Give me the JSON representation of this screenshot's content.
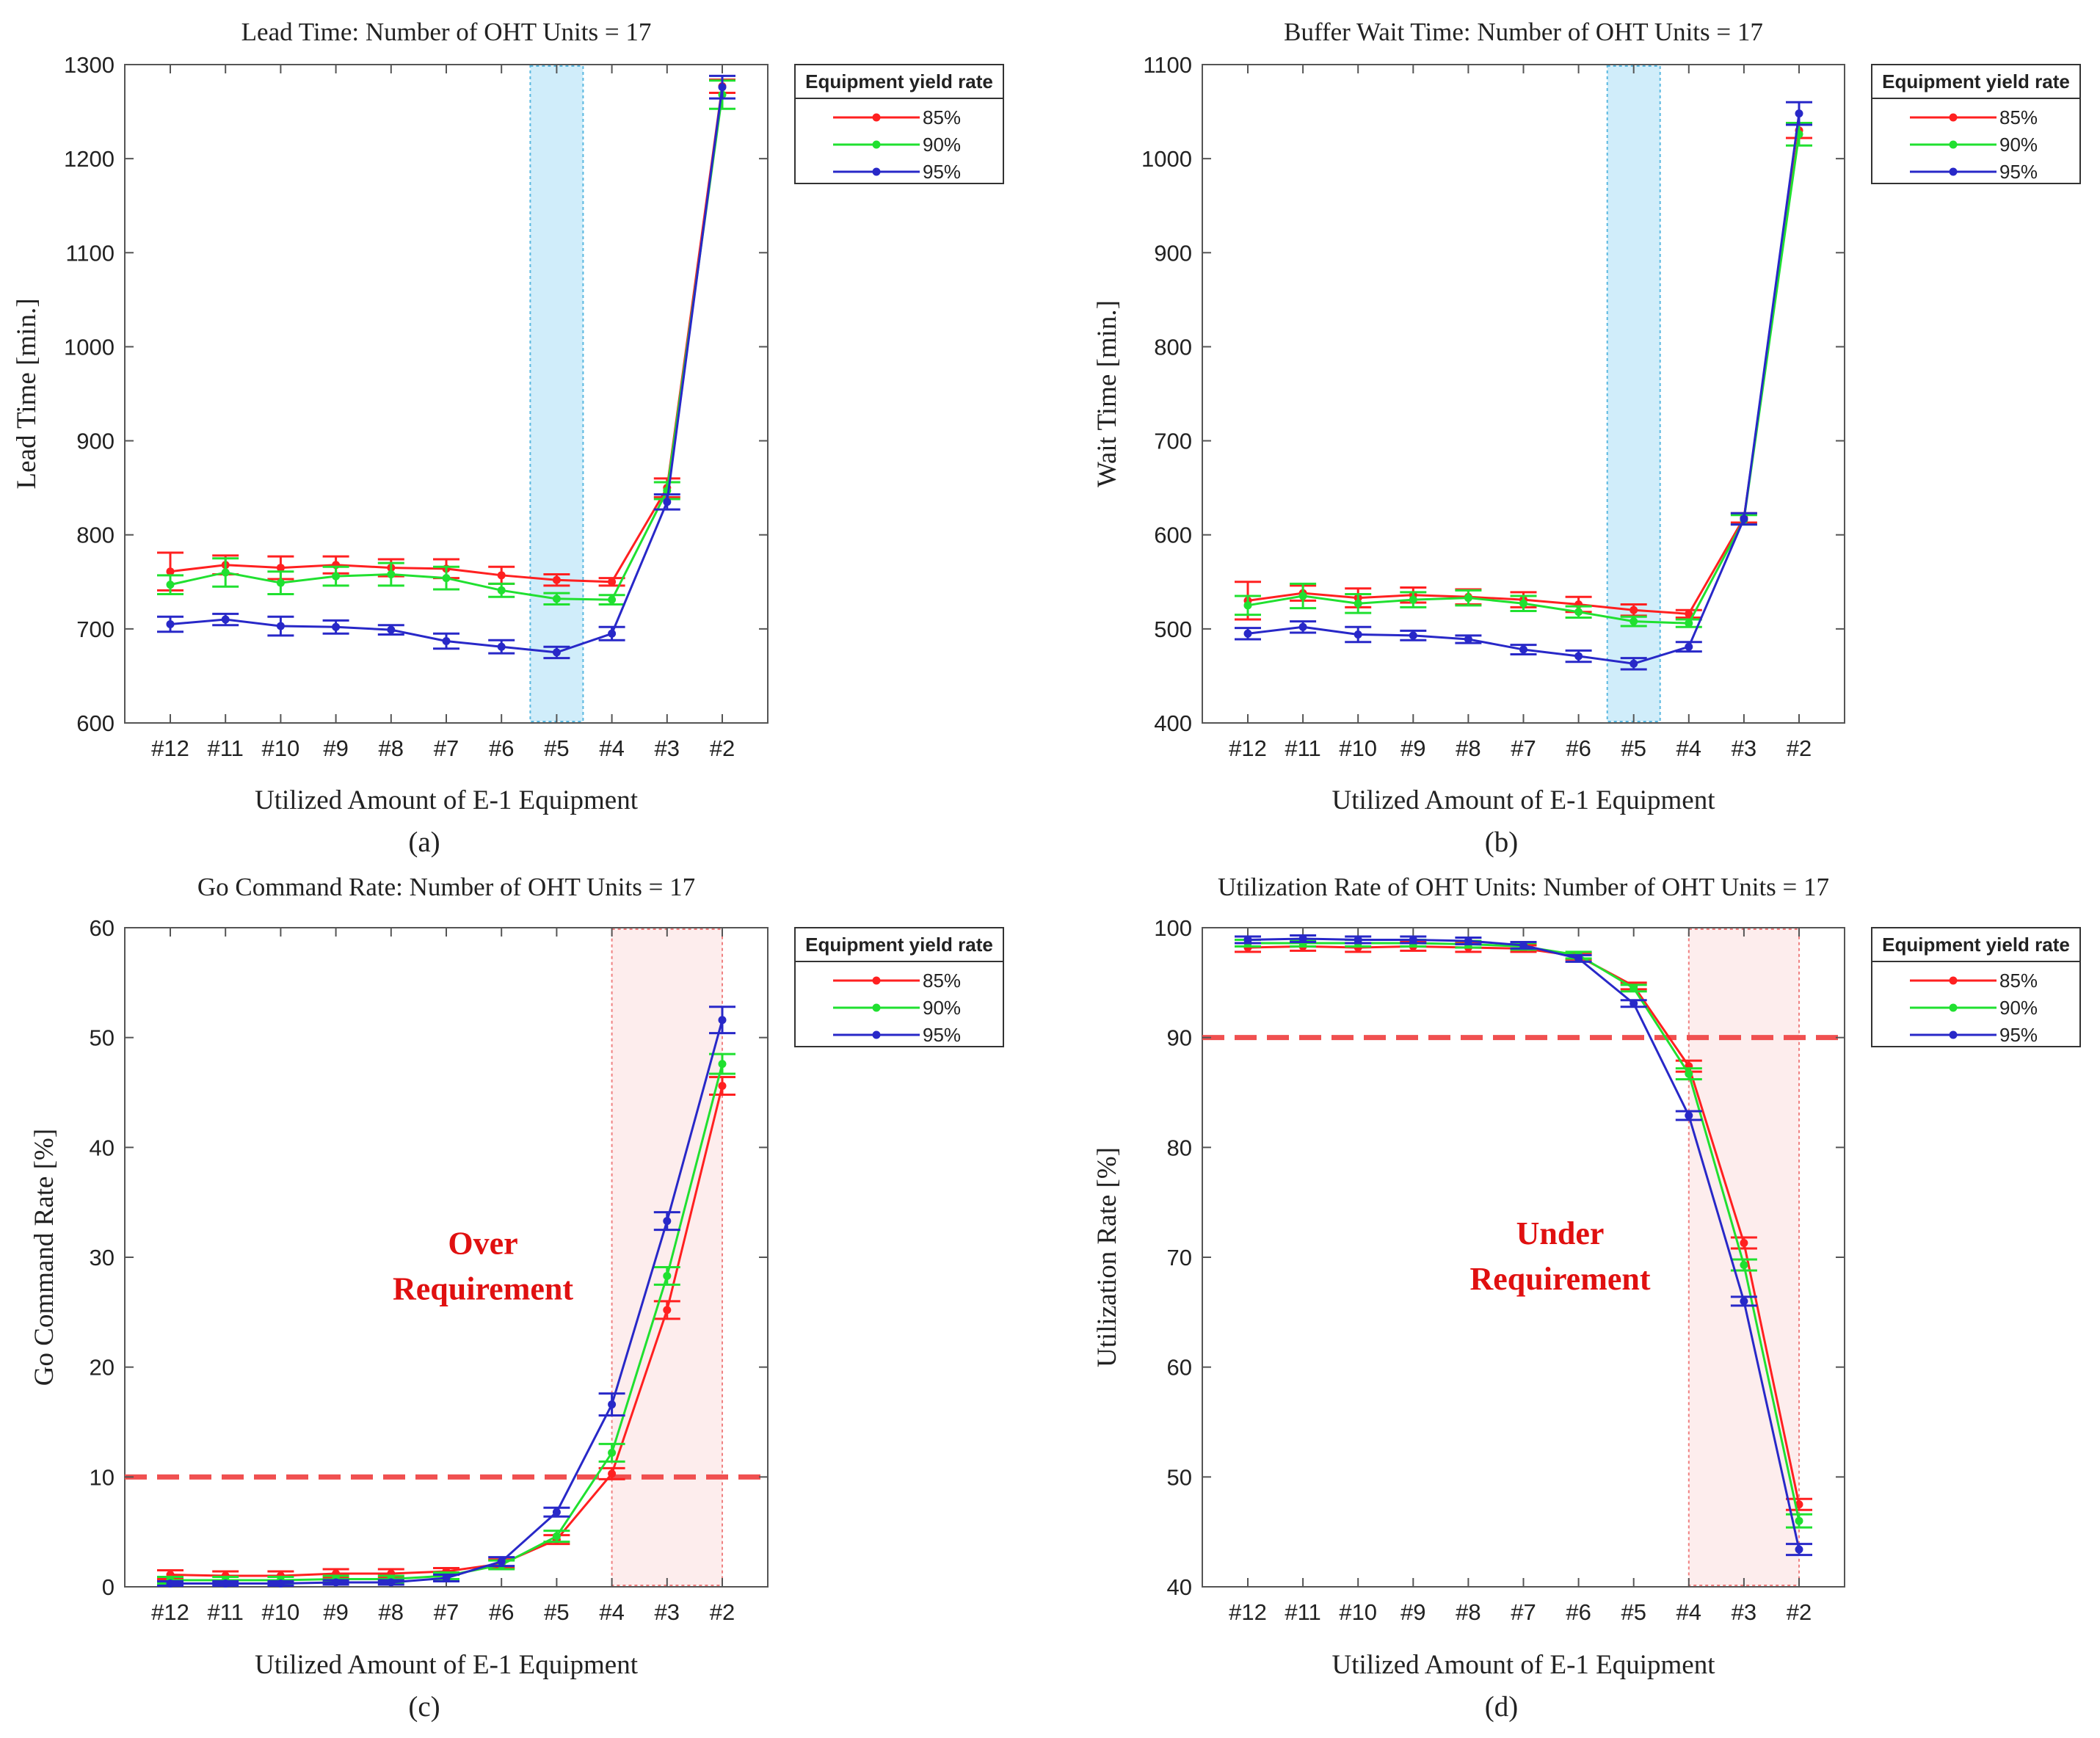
{
  "figure": {
    "colors": {
      "85": "#ff2020",
      "90": "#20e030",
      "95": "#2828c8",
      "threshold": "#f05050"
    }
  },
  "chart_data": [
    {
      "id": "a",
      "type": "line",
      "title": "Lead Time: Number of OHT Units = 17",
      "xlabel": "Utilized Amount of E-1 Equipment",
      "ylabel": "Lead Time [min.]",
      "panel_label": "(a)",
      "categories": [
        "#12",
        "#11",
        "#10",
        "#9",
        "#8",
        "#7",
        "#6",
        "#5",
        "#4",
        "#3",
        "#2"
      ],
      "ylim": [
        600,
        1300
      ],
      "yticks": [
        600,
        700,
        800,
        900,
        1000,
        1100,
        1200,
        1300
      ],
      "legend_title": "Equipment yield rate",
      "legend_position": "top-right",
      "highlight": {
        "category": "#5",
        "color": "blue"
      },
      "series": [
        {
          "name": "85%",
          "values": [
            761,
            768,
            765,
            768,
            765,
            764,
            757,
            752,
            750,
            850,
            1277
          ],
          "errors": [
            20,
            10,
            12,
            9,
            9,
            10,
            9,
            6,
            4,
            10,
            7
          ]
        },
        {
          "name": "90%",
          "values": [
            747,
            760,
            749,
            756,
            758,
            754,
            741,
            732,
            731,
            847,
            1268
          ],
          "errors": [
            10,
            15,
            12,
            10,
            12,
            12,
            7,
            6,
            5,
            9,
            15
          ]
        },
        {
          "name": "95%",
          "values": [
            705,
            710,
            703,
            702,
            699,
            687,
            681,
            675,
            695,
            835,
            1276
          ],
          "errors": [
            8,
            6,
            10,
            7,
            5,
            8,
            7,
            6,
            7,
            8,
            12
          ]
        }
      ]
    },
    {
      "id": "b",
      "type": "line",
      "title": "Buffer Wait Time: Number of OHT Units = 17",
      "xlabel": "Utilized Amount of E-1 Equipment",
      "ylabel": "Wait Time [min.]",
      "panel_label": "(b)",
      "categories": [
        "#12",
        "#11",
        "#10",
        "#9",
        "#8",
        "#7",
        "#6",
        "#5",
        "#4",
        "#3",
        "#2"
      ],
      "ylim": [
        400,
        1100
      ],
      "yticks": [
        400,
        500,
        600,
        700,
        800,
        900,
        1000,
        1100
      ],
      "legend_title": "Equipment yield rate",
      "legend_position": "top-right",
      "highlight": {
        "category": "#5",
        "color": "blue"
      },
      "series": [
        {
          "name": "85%",
          "values": [
            530,
            538,
            533,
            536,
            534,
            531,
            526,
            520,
            516,
            618,
            1030
          ],
          "errors": [
            20,
            8,
            10,
            8,
            8,
            8,
            8,
            6,
            4,
            5,
            8
          ]
        },
        {
          "name": "90%",
          "values": [
            525,
            535,
            527,
            531,
            533,
            527,
            518,
            508,
            506,
            616,
            1026
          ],
          "errors": [
            10,
            13,
            10,
            8,
            8,
            8,
            6,
            5,
            4,
            5,
            12
          ]
        },
        {
          "name": "95%",
          "values": [
            495,
            502,
            494,
            493,
            489,
            478,
            471,
            463,
            481,
            617,
            1048
          ],
          "errors": [
            6,
            6,
            8,
            5,
            4,
            5,
            6,
            6,
            5,
            6,
            12
          ]
        }
      ]
    },
    {
      "id": "c",
      "type": "line",
      "title": "Go Command Rate: Number of OHT Units = 17",
      "xlabel": "Utilized Amount of E-1 Equipment",
      "ylabel": "Go Command Rate [%]",
      "panel_label": "(c)",
      "categories": [
        "#12",
        "#11",
        "#10",
        "#9",
        "#8",
        "#7",
        "#6",
        "#5",
        "#4",
        "#3",
        "#2"
      ],
      "ylim": [
        0,
        60
      ],
      "yticks": [
        0,
        10,
        20,
        30,
        40,
        50,
        60
      ],
      "legend_title": "Equipment yield rate",
      "legend_position": "top-right",
      "threshold": 10,
      "highlight": {
        "categories": [
          "#4",
          "#2"
        ],
        "color": "red"
      },
      "annotation": [
        "Over",
        "Requirement"
      ],
      "series": [
        {
          "name": "85%",
          "values": [
            1.1,
            1.0,
            1.0,
            1.2,
            1.2,
            1.4,
            2.1,
            4.3,
            10.3,
            25.2,
            45.6
          ],
          "errors": [
            0.4,
            0.4,
            0.4,
            0.4,
            0.4,
            0.3,
            0.4,
            0.4,
            0.5,
            0.8,
            0.8
          ]
        },
        {
          "name": "90%",
          "values": [
            0.6,
            0.6,
            0.6,
            0.7,
            0.7,
            1.0,
            2.0,
            4.6,
            12.2,
            28.3,
            47.6
          ],
          "errors": [
            0.3,
            0.3,
            0.3,
            0.3,
            0.3,
            0.3,
            0.4,
            0.5,
            0.8,
            0.8,
            0.9
          ]
        },
        {
          "name": "95%",
          "values": [
            0.3,
            0.3,
            0.3,
            0.4,
            0.4,
            0.8,
            2.3,
            6.8,
            16.6,
            33.3,
            51.6
          ],
          "errors": [
            0.2,
            0.2,
            0.2,
            0.2,
            0.2,
            0.3,
            0.4,
            0.4,
            1.0,
            0.8,
            1.2
          ]
        }
      ]
    },
    {
      "id": "d",
      "type": "line",
      "title": "Utilization Rate of OHT Units: Number of OHT Units = 17",
      "xlabel": "Utilized Amount of E-1 Equipment",
      "ylabel": "Utilization Rate [%]",
      "panel_label": "(d)",
      "categories": [
        "#12",
        "#11",
        "#10",
        "#9",
        "#8",
        "#7",
        "#6",
        "#5",
        "#4",
        "#3",
        "#2"
      ],
      "ylim": [
        40,
        100
      ],
      "yticks": [
        40,
        50,
        60,
        70,
        80,
        90,
        100
      ],
      "legend_title": "Equipment yield rate",
      "legend_position": "top-right",
      "threshold": 90,
      "highlight": {
        "categories": [
          "#4",
          "#2"
        ],
        "color": "red"
      },
      "annotation": [
        "Under",
        "Requirement"
      ],
      "series": [
        {
          "name": "85%",
          "values": [
            98.2,
            98.3,
            98.2,
            98.3,
            98.2,
            98.1,
            97.4,
            94.7,
            87.4,
            71.3,
            47.5
          ],
          "errors": [
            0.4,
            0.4,
            0.4,
            0.4,
            0.4,
            0.3,
            0.3,
            0.3,
            0.5,
            0.5,
            0.5
          ]
        },
        {
          "name": "90%",
          "values": [
            98.6,
            98.6,
            98.6,
            98.6,
            98.5,
            98.3,
            97.5,
            94.5,
            86.7,
            69.3,
            46.0
          ],
          "errors": [
            0.3,
            0.3,
            0.3,
            0.3,
            0.3,
            0.3,
            0.3,
            0.3,
            0.5,
            0.5,
            0.6
          ]
        },
        {
          "name": "95%",
          "values": [
            98.9,
            99.0,
            98.9,
            98.9,
            98.8,
            98.4,
            97.2,
            93.1,
            82.9,
            66.0,
            43.4
          ],
          "errors": [
            0.3,
            0.3,
            0.3,
            0.3,
            0.3,
            0.3,
            0.3,
            0.3,
            0.4,
            0.4,
            0.5
          ]
        }
      ]
    }
  ]
}
